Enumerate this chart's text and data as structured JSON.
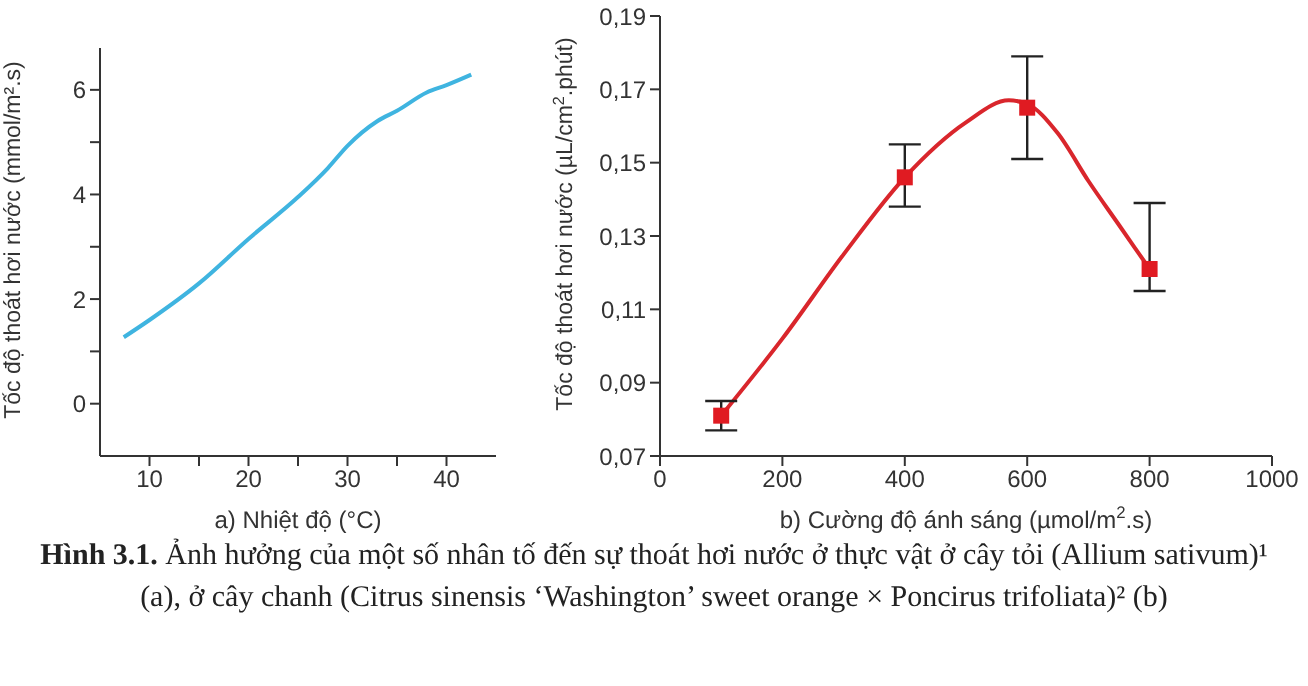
{
  "chart_data": [
    {
      "type": "line",
      "xlabel": "a) Nhiệt độ (°C)",
      "ylabel": "Tốc độ thoát hơi nước (mmol/m².s)",
      "x": [
        7.4,
        10,
        15,
        20,
        25,
        28,
        30,
        33,
        35,
        38,
        40,
        42.5
      ],
      "series": [
        {
          "color": "#3fb4e0",
          "values": [
            1.27,
            1.6,
            2.3,
            3.15,
            3.95,
            4.5,
            4.93,
            5.4,
            5.6,
            5.95,
            6.09,
            6.29
          ]
        }
      ],
      "xlim": [
        5,
        45
      ],
      "xticks": [
        10,
        {
          "value": 15,
          "label": null
        },
        20,
        {
          "value": 25,
          "label": null
        },
        30,
        {
          "value": 35,
          "label": null
        },
        40
      ],
      "ylim": [
        -1,
        6.8
      ],
      "yticks": [
        0,
        {
          "value": 1,
          "label": null
        },
        2,
        {
          "value": 3,
          "label": null
        },
        4,
        {
          "value": 5,
          "label": null
        },
        6
      ],
      "grid": false,
      "legend": false,
      "marker": "none",
      "line_style": "solid",
      "annotations": [
        "Hình 3.1.",
        "Ảnh hưởng của một số nhân tố đến sự thoát hơi nước ở thực vật ở cây tỏi (Allium sativum)¹ (a), ở cây chanh (Citrus sinensis ‘Washington’ sweet orange × Poncirus trifoliata)² (b)"
      ]
    },
    {
      "type": "line",
      "xlabel": "b) Cường độ ánh sáng (µmol/m$^{2}$.s)",
      "ylabel": "Tốc độ thoát hơi nước (µL/cm$^{2}$.phút)",
      "series": [
        {
          "color": "#d9262c",
          "x": [
            100,
            200,
            300,
            400,
            500,
            570,
            600,
            650,
            700,
            750,
            800
          ],
          "values": [
            0.081,
            0.102,
            0.125,
            0.146,
            0.161,
            0.167,
            0.166,
            0.158,
            0.145,
            0.133,
            0.121
          ],
          "marker": "none"
        },
        {
          "type": "scatter",
          "color": "#e01b22",
          "x": [
            100,
            400,
            600,
            800
          ],
          "values": [
            0.081,
            0.146,
            0.165,
            0.121
          ],
          "marker": "square",
          "errors": [
            [
              0.077,
              0.085
            ],
            [
              0.138,
              0.155
            ],
            [
              0.151,
              0.179
            ],
            [
              0.115,
              0.139
            ]
          ]
        }
      ],
      "xlim": [
        0,
        1000
      ],
      "xticks": [
        0,
        200,
        400,
        600,
        800,
        1000
      ],
      "ylim": [
        0.07,
        0.19
      ],
      "yticks": [
        {
          "value": 0.07,
          "label": "0,07"
        },
        {
          "value": 0.09,
          "label": "0,09"
        },
        {
          "value": 0.11,
          "label": "0,11"
        },
        {
          "value": 0.13,
          "label": "0,13"
        },
        {
          "value": 0.15,
          "label": "0,15"
        },
        {
          "value": 0.17,
          "label": "0,17"
        },
        {
          "value": 0.19,
          "label": "0,19"
        }
      ],
      "grid": false,
      "legend": false,
      "line_style": "solid"
    }
  ]
}
